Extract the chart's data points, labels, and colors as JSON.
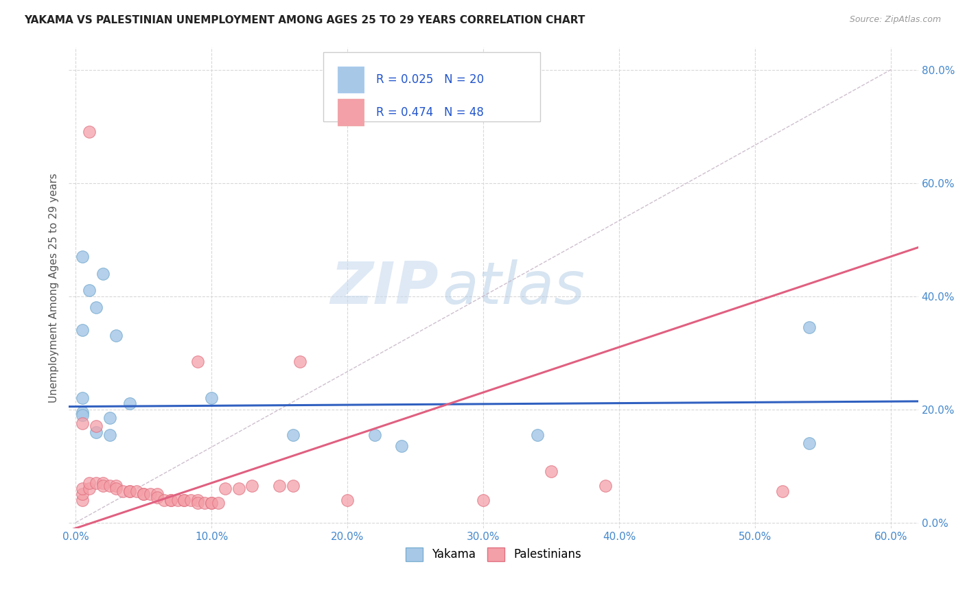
{
  "title": "YAKAMA VS PALESTINIAN UNEMPLOYMENT AMONG AGES 25 TO 29 YEARS CORRELATION CHART",
  "source": "Source: ZipAtlas.com",
  "ylabel": "Unemployment Among Ages 25 to 29 years",
  "xlim": [
    -0.005,
    0.62
  ],
  "ylim": [
    -0.01,
    0.84
  ],
  "xticks": [
    0.0,
    0.1,
    0.2,
    0.3,
    0.4,
    0.5,
    0.6
  ],
  "xticklabels": [
    "0.0%",
    "10.0%",
    "20.0%",
    "30.0%",
    "40.0%",
    "50.0%",
    "60.0%"
  ],
  "yticks": [
    0.0,
    0.2,
    0.4,
    0.6,
    0.8
  ],
  "yticklabels": [
    "0.0%",
    "20.0%",
    "40.0%",
    "60.0%",
    "80.0%"
  ],
  "watermark_zip": "ZIP",
  "watermark_atlas": "atlas",
  "yakama_color": "#a8c8e8",
  "pal_color": "#f4a0a8",
  "yakama_edge": "#7aaed0",
  "pal_edge": "#e07080",
  "yakama_line_color": "#3060c0",
  "pal_line_color": "#e06080",
  "ref_line_color": "#c8b8c8",
  "bg_color": "#ffffff",
  "grid_color": "#d8d8d8",
  "legend_yakama_r": "R = 0.025",
  "legend_yakama_n": "N = 20",
  "legend_pal_r": "R = 0.474",
  "legend_pal_n": "N = 48",
  "yakama_scatter": [
    [
      0.005,
      0.47
    ],
    [
      0.02,
      0.44
    ],
    [
      0.01,
      0.41
    ],
    [
      0.015,
      0.38
    ],
    [
      0.005,
      0.34
    ],
    [
      0.03,
      0.33
    ],
    [
      0.005,
      0.22
    ],
    [
      0.04,
      0.21
    ],
    [
      0.1,
      0.22
    ],
    [
      0.005,
      0.195
    ],
    [
      0.015,
      0.16
    ],
    [
      0.025,
      0.155
    ],
    [
      0.005,
      0.19
    ],
    [
      0.025,
      0.185
    ],
    [
      0.16,
      0.155
    ],
    [
      0.22,
      0.155
    ],
    [
      0.24,
      0.135
    ],
    [
      0.34,
      0.155
    ],
    [
      0.54,
      0.345
    ],
    [
      0.54,
      0.14
    ]
  ],
  "pal_scatter": [
    [
      0.01,
      0.69
    ],
    [
      0.09,
      0.285
    ],
    [
      0.165,
      0.285
    ],
    [
      0.2,
      0.04
    ],
    [
      0.005,
      0.175
    ],
    [
      0.015,
      0.17
    ],
    [
      0.005,
      0.04
    ],
    [
      0.005,
      0.05
    ],
    [
      0.005,
      0.06
    ],
    [
      0.01,
      0.06
    ],
    [
      0.01,
      0.07
    ],
    [
      0.015,
      0.07
    ],
    [
      0.02,
      0.07
    ],
    [
      0.02,
      0.065
    ],
    [
      0.025,
      0.065
    ],
    [
      0.03,
      0.065
    ],
    [
      0.03,
      0.06
    ],
    [
      0.035,
      0.055
    ],
    [
      0.04,
      0.055
    ],
    [
      0.04,
      0.055
    ],
    [
      0.045,
      0.055
    ],
    [
      0.05,
      0.05
    ],
    [
      0.05,
      0.05
    ],
    [
      0.055,
      0.05
    ],
    [
      0.06,
      0.05
    ],
    [
      0.06,
      0.045
    ],
    [
      0.065,
      0.04
    ],
    [
      0.07,
      0.04
    ],
    [
      0.07,
      0.04
    ],
    [
      0.075,
      0.04
    ],
    [
      0.08,
      0.04
    ],
    [
      0.08,
      0.04
    ],
    [
      0.085,
      0.04
    ],
    [
      0.09,
      0.04
    ],
    [
      0.09,
      0.035
    ],
    [
      0.095,
      0.035
    ],
    [
      0.1,
      0.035
    ],
    [
      0.1,
      0.035
    ],
    [
      0.105,
      0.035
    ],
    [
      0.11,
      0.06
    ],
    [
      0.12,
      0.06
    ],
    [
      0.13,
      0.065
    ],
    [
      0.15,
      0.065
    ],
    [
      0.16,
      0.065
    ],
    [
      0.3,
      0.04
    ],
    [
      0.35,
      0.09
    ],
    [
      0.39,
      0.065
    ],
    [
      0.52,
      0.055
    ]
  ]
}
